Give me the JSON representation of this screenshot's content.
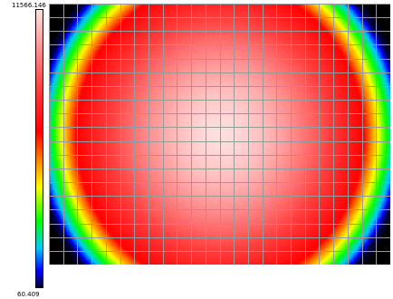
{
  "chart_data": {
    "type": "heatmap",
    "title": "",
    "xlabel": "",
    "ylabel": "",
    "colorbar": {
      "max_label": "11566.146",
      "min_label": "60.409",
      "vmax": 11566.146,
      "vmin": 60.409,
      "colormap": [
        "#000033",
        "#0000ff",
        "#00c8ff",
        "#00ff00",
        "#ffff00",
        "#ff8000",
        "#ff0000",
        "#ff4040",
        "#ff9090",
        "#ffe0e0"
      ],
      "colormap_stops": [
        0.0,
        0.06,
        0.14,
        0.24,
        0.36,
        0.46,
        0.56,
        0.72,
        0.86,
        1.0
      ]
    },
    "grid": {
      "columns": 24,
      "rows": 19,
      "line_color": "#9a9a9a"
    },
    "field": {
      "description_values": "radial intensity profile, brightest at center",
      "peak_value": 11566.146,
      "corner_value": 60.409,
      "center_col_frac": 0.5,
      "center_row_frac": 0.5
    },
    "background_corner_color": "#000000"
  }
}
